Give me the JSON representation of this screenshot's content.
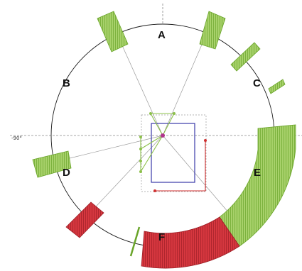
{
  "diagram": {
    "angle_label": "-90°",
    "zone_labels": [
      "A",
      "B",
      "C",
      "D",
      "E",
      "F"
    ],
    "colors": {
      "circle": "#1a1a1a",
      "guide": "#888888",
      "green_fill": "#a7d16a",
      "green_line": "#6aa52a",
      "red_fill": "#d6373f",
      "red_line": "#9e1e26",
      "rect_blue": "#3838a8",
      "rect_red": "#d03030",
      "center_dot": "#b0358c"
    }
  }
}
